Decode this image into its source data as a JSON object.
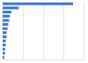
{
  "chart_data": {
    "type": "bar",
    "orientation": "horizontal",
    "categories": [
      null,
      null,
      null,
      null,
      null,
      null,
      null,
      null,
      null,
      null,
      null,
      null,
      null,
      null
    ],
    "values": [
      87,
      20,
      11,
      9,
      8,
      7,
      6,
      5,
      5,
      4,
      4,
      3,
      3,
      2
    ],
    "color": "#3a78d8",
    "xlim": [
      0,
      100
    ],
    "xticks": [
      0,
      25,
      50,
      75,
      100
    ],
    "grid": true,
    "tick_labels": false
  }
}
